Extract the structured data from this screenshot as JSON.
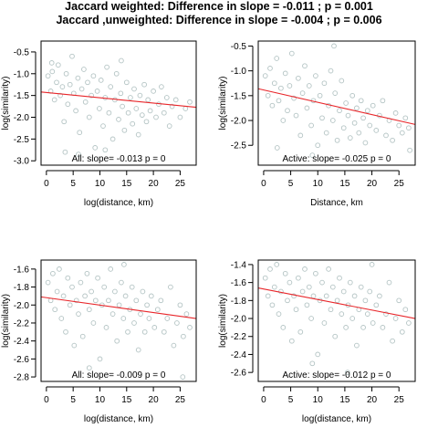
{
  "titles": {
    "line1": "Jaccard weighted: Difference in slope = -0.011 ; p = 0.001",
    "line2": "Jaccard ,unweighted: Difference in slope = -0.004 ; p = 0.006"
  },
  "colors": {
    "points": "#b4c4c4",
    "fit_line": "#e8262a",
    "axes": "#000000"
  },
  "chart_data": [
    {
      "type": "scatter",
      "xlabel": "log(distance, km)",
      "ylabel": "log(similarity)",
      "annotation": "All: slope= -0.013  p =  0",
      "xlim": [
        -1,
        28
      ],
      "ylim": [
        -3.1,
        -0.25
      ],
      "xticks": [
        "0",
        "5",
        "10",
        "15",
        "20",
        "25"
      ],
      "yticks": [
        "-3.0",
        "-2.5",
        "-2.0",
        "-1.5",
        "-1.0",
        "-0.5"
      ],
      "fit_line": {
        "x": [
          -1,
          28
        ],
        "y": [
          -1.42,
          -1.77
        ]
      },
      "points": [
        [
          0.3,
          -1.05
        ],
        [
          0.8,
          -1.4
        ],
        [
          1.1,
          -0.95
        ],
        [
          1.5,
          -1.6
        ],
        [
          1.9,
          -1.2
        ],
        [
          2.2,
          -0.8
        ],
        [
          2.6,
          -1.5
        ],
        [
          3.0,
          -1.3
        ],
        [
          3.3,
          -2.1
        ],
        [
          3.7,
          -1.0
        ],
        [
          4.0,
          -1.7
        ],
        [
          4.4,
          -1.25
        ],
        [
          4.8,
          -0.6
        ],
        [
          5.1,
          -1.45
        ],
        [
          5.5,
          -1.85
        ],
        [
          5.9,
          -1.1
        ],
        [
          6.2,
          -2.35
        ],
        [
          6.6,
          -1.35
        ],
        [
          7.0,
          -0.9
        ],
        [
          7.3,
          -1.65
        ],
        [
          7.7,
          -1.2
        ],
        [
          8.0,
          -2.0
        ],
        [
          8.4,
          -1.5
        ],
        [
          8.8,
          -1.05
        ],
        [
          9.1,
          -2.7
        ],
        [
          9.5,
          -1.4
        ],
        [
          9.9,
          -1.8
        ],
        [
          10.2,
          -1.15
        ],
        [
          10.6,
          -2.2
        ],
        [
          11.0,
          -1.55
        ],
        [
          11.3,
          -0.85
        ],
        [
          11.7,
          -1.9
        ],
        [
          12.0,
          -1.3
        ],
        [
          12.4,
          -2.5
        ],
        [
          12.8,
          -1.6
        ],
        [
          13.1,
          -1.0
        ],
        [
          13.5,
          -2.05
        ],
        [
          13.9,
          -1.45
        ],
        [
          14.2,
          -1.75
        ],
        [
          14.6,
          -2.3
        ],
        [
          15.0,
          -1.2
        ],
        [
          15.3,
          -1.9
        ],
        [
          15.7,
          -1.55
        ],
        [
          16.1,
          -2.15
        ],
        [
          16.4,
          -1.35
        ],
        [
          16.8,
          -1.8
        ],
        [
          17.2,
          -2.4
        ],
        [
          17.5,
          -1.5
        ],
        [
          17.9,
          -1.95
        ],
        [
          18.3,
          -1.25
        ],
        [
          18.7,
          -2.1
        ],
        [
          19.0,
          -1.6
        ],
        [
          19.4,
          -1.85
        ],
        [
          20.0,
          -1.4
        ],
        [
          20.5,
          -2.0
        ],
        [
          21.0,
          -1.7
        ],
        [
          21.5,
          -1.3
        ],
        [
          22.0,
          -1.9
        ],
        [
          22.5,
          -1.55
        ],
        [
          23.0,
          -2.2
        ],
        [
          23.5,
          -1.75
        ],
        [
          24.2,
          -1.6
        ],
        [
          25.0,
          -2.0
        ],
        [
          26.0,
          -1.8
        ],
        [
          26.8,
          -1.65
        ],
        [
          3.5,
          -2.8
        ],
        [
          6.0,
          -2.85
        ],
        [
          11.0,
          -2.75
        ],
        [
          1.0,
          -0.75
        ],
        [
          14.0,
          -0.7
        ]
      ]
    },
    {
      "type": "scatter",
      "xlabel": "Distance, km",
      "ylabel": "log(similarity)",
      "annotation": "Active: slope= -0.025  p =  0",
      "xlim": [
        -1,
        28
      ],
      "ylim": [
        -2.9,
        -0.4
      ],
      "xticks": [
        "0",
        "5",
        "10",
        "15",
        "20",
        "25"
      ],
      "yticks": [
        "-2.5",
        "-2.0",
        "-1.5",
        "-1.0",
        "-0.5"
      ],
      "fit_line": {
        "x": [
          -1,
          28
        ],
        "y": [
          -1.36,
          -2.08
        ]
      },
      "points": [
        [
          0.3,
          -1.1
        ],
        [
          0.8,
          -1.5
        ],
        [
          1.2,
          -0.95
        ],
        [
          1.6,
          -1.7
        ],
        [
          2.0,
          -1.25
        ],
        [
          2.4,
          -0.75
        ],
        [
          2.8,
          -1.6
        ],
        [
          3.2,
          -1.35
        ],
        [
          3.6,
          -2.0
        ],
        [
          4.0,
          -1.05
        ],
        [
          4.4,
          -1.8
        ],
        [
          4.8,
          -1.3
        ],
        [
          5.2,
          -0.65
        ],
        [
          5.6,
          -1.55
        ],
        [
          6.0,
          -1.9
        ],
        [
          6.4,
          -1.15
        ],
        [
          6.8,
          -2.3
        ],
        [
          7.2,
          -1.45
        ],
        [
          7.6,
          -0.9
        ],
        [
          8.0,
          -1.75
        ],
        [
          8.4,
          -1.3
        ],
        [
          8.8,
          -2.1
        ],
        [
          9.2,
          -1.6
        ],
        [
          9.6,
          -1.1
        ],
        [
          10.0,
          -2.5
        ],
        [
          10.4,
          -1.5
        ],
        [
          10.8,
          -1.95
        ],
        [
          11.2,
          -1.25
        ],
        [
          11.6,
          -2.25
        ],
        [
          12.0,
          -1.7
        ],
        [
          12.4,
          -1.0
        ],
        [
          12.8,
          -2.0
        ],
        [
          13.2,
          -1.45
        ],
        [
          13.6,
          -2.4
        ],
        [
          14.0,
          -1.8
        ],
        [
          14.4,
          -1.2
        ],
        [
          14.8,
          -2.15
        ],
        [
          15.2,
          -1.65
        ],
        [
          15.6,
          -1.9
        ],
        [
          16.0,
          -2.35
        ],
        [
          16.4,
          -1.5
        ],
        [
          16.8,
          -2.05
        ],
        [
          17.2,
          -1.75
        ],
        [
          17.6,
          -2.25
        ],
        [
          18.0,
          -1.6
        ],
        [
          18.4,
          -1.95
        ],
        [
          18.8,
          -2.45
        ],
        [
          19.2,
          -1.8
        ],
        [
          19.6,
          -2.1
        ],
        [
          20.2,
          -1.7
        ],
        [
          20.8,
          -2.2
        ],
        [
          21.4,
          -1.9
        ],
        [
          22.0,
          -1.6
        ],
        [
          22.6,
          -2.3
        ],
        [
          23.2,
          -2.0
        ],
        [
          23.8,
          -2.4
        ],
        [
          24.4,
          -1.85
        ],
        [
          25.0,
          -2.1
        ],
        [
          25.6,
          -2.25
        ],
        [
          26.2,
          -1.95
        ],
        [
          26.8,
          -2.15
        ],
        [
          27.0,
          -2.6
        ],
        [
          13.0,
          -0.5
        ],
        [
          2.5,
          -2.55
        ],
        [
          9.0,
          -2.7
        ]
      ]
    },
    {
      "type": "scatter",
      "xlabel": "log(distance, km)",
      "ylabel": "log(similarity)",
      "annotation": "All: slope= -0.009  p =  0",
      "xlim": [
        -1,
        28
      ],
      "ylim": [
        -2.85,
        -1.5
      ],
      "xticks": [
        "0",
        "5",
        "10",
        "15",
        "20",
        "25"
      ],
      "yticks": [
        "-2.8",
        "-2.6",
        "-2.4",
        "-2.2",
        "-2.0",
        "-1.8",
        "-1.6"
      ],
      "fit_line": {
        "x": [
          -1,
          28
        ],
        "y": [
          -1.91,
          -2.15
        ]
      },
      "points": [
        [
          0.3,
          -1.75
        ],
        [
          0.8,
          -1.95
        ],
        [
          1.2,
          -1.65
        ],
        [
          1.6,
          -2.05
        ],
        [
          2.0,
          -1.85
        ],
        [
          2.4,
          -1.6
        ],
        [
          2.8,
          -2.15
        ],
        [
          3.2,
          -1.9
        ],
        [
          3.6,
          -2.3
        ],
        [
          4.0,
          -1.7
        ],
        [
          4.4,
          -2.0
        ],
        [
          4.8,
          -1.8
        ],
        [
          5.2,
          -2.45
        ],
        [
          5.6,
          -1.95
        ],
        [
          6.0,
          -2.1
        ],
        [
          6.4,
          -1.75
        ],
        [
          6.8,
          -2.35
        ],
        [
          7.2,
          -1.9
        ],
        [
          7.6,
          -1.65
        ],
        [
          8.0,
          -2.05
        ],
        [
          8.4,
          -1.85
        ],
        [
          8.8,
          -2.2
        ],
        [
          9.2,
          -1.95
        ],
        [
          9.6,
          -1.7
        ],
        [
          10.0,
          -2.6
        ],
        [
          10.4,
          -2.0
        ],
        [
          10.8,
          -1.8
        ],
        [
          11.2,
          -2.25
        ],
        [
          11.6,
          -1.95
        ],
        [
          12.0,
          -1.6
        ],
        [
          12.4,
          -2.1
        ],
        [
          12.8,
          -1.85
        ],
        [
          13.2,
          -2.4
        ],
        [
          13.6,
          -2.0
        ],
        [
          14.0,
          -1.75
        ],
        [
          14.4,
          -2.15
        ],
        [
          14.8,
          -1.9
        ],
        [
          15.2,
          -2.3
        ],
        [
          15.6,
          -2.05
        ],
        [
          16.0,
          -1.8
        ],
        [
          16.4,
          -2.2
        ],
        [
          16.8,
          -1.95
        ],
        [
          17.2,
          -2.5
        ],
        [
          17.6,
          -2.1
        ],
        [
          18.0,
          -1.85
        ],
        [
          18.4,
          -2.3
        ],
        [
          18.8,
          -2.0
        ],
        [
          19.2,
          -2.15
        ],
        [
          19.6,
          -1.9
        ],
        [
          20.2,
          -2.25
        ],
        [
          20.8,
          -2.05
        ],
        [
          21.4,
          -1.95
        ],
        [
          22.0,
          -2.3
        ],
        [
          22.6,
          -2.15
        ],
        [
          23.2,
          -1.8
        ],
        [
          23.8,
          -2.45
        ],
        [
          24.4,
          -2.2
        ],
        [
          25.0,
          -2.0
        ],
        [
          25.6,
          -2.35
        ],
        [
          26.2,
          -2.1
        ],
        [
          26.8,
          -2.25
        ],
        [
          25.5,
          -2.8
        ],
        [
          14.5,
          -1.55
        ],
        [
          8.0,
          -2.7
        ]
      ]
    },
    {
      "type": "scatter",
      "xlabel": "log(distance, km)",
      "ylabel": "log(similarity)",
      "annotation": "Active: slope= -0.012  p =  0",
      "xlim": [
        -1,
        28
      ],
      "ylim": [
        -2.7,
        -1.35
      ],
      "xticks": [
        "0",
        "5",
        "10",
        "15",
        "20",
        "25"
      ],
      "yticks": [
        "-2.6",
        "-2.4",
        "-2.2",
        "-2.0",
        "-1.8",
        "-1.6",
        "-1.4"
      ],
      "fit_line": {
        "x": [
          -1,
          28
        ],
        "y": [
          -1.66,
          -2.0
        ]
      },
      "points": [
        [
          0.3,
          -1.55
        ],
        [
          0.8,
          -1.75
        ],
        [
          1.2,
          -1.45
        ],
        [
          1.6,
          -1.85
        ],
        [
          2.0,
          -1.65
        ],
        [
          2.4,
          -1.4
        ],
        [
          2.8,
          -1.95
        ],
        [
          3.2,
          -1.7
        ],
        [
          3.6,
          -2.1
        ],
        [
          4.0,
          -1.5
        ],
        [
          4.4,
          -1.8
        ],
        [
          4.8,
          -1.6
        ],
        [
          5.2,
          -2.25
        ],
        [
          5.6,
          -1.75
        ],
        [
          6.0,
          -1.9
        ],
        [
          6.4,
          -1.55
        ],
        [
          6.8,
          -2.15
        ],
        [
          7.2,
          -1.7
        ],
        [
          7.6,
          -1.45
        ],
        [
          8.0,
          -1.85
        ],
        [
          8.4,
          -1.65
        ],
        [
          8.8,
          -2.0
        ],
        [
          9.2,
          -1.75
        ],
        [
          9.6,
          -1.5
        ],
        [
          10.0,
          -2.4
        ],
        [
          10.4,
          -1.8
        ],
        [
          10.8,
          -1.6
        ],
        [
          11.2,
          -2.05
        ],
        [
          11.6,
          -1.75
        ],
        [
          12.0,
          -1.45
        ],
        [
          12.4,
          -1.9
        ],
        [
          12.8,
          -1.65
        ],
        [
          13.2,
          -2.2
        ],
        [
          13.6,
          -1.8
        ],
        [
          14.0,
          -1.55
        ],
        [
          14.4,
          -1.95
        ],
        [
          14.8,
          -1.7
        ],
        [
          15.2,
          -2.1
        ],
        [
          15.6,
          -1.85
        ],
        [
          16.0,
          -1.6
        ],
        [
          16.4,
          -2.0
        ],
        [
          16.8,
          -1.75
        ],
        [
          17.2,
          -2.3
        ],
        [
          17.6,
          -1.9
        ],
        [
          18.0,
          -1.65
        ],
        [
          18.4,
          -2.1
        ],
        [
          18.8,
          -1.8
        ],
        [
          19.2,
          -1.95
        ],
        [
          19.6,
          -1.7
        ],
        [
          20.2,
          -2.05
        ],
        [
          20.8,
          -1.85
        ],
        [
          21.4,
          -1.75
        ],
        [
          22.0,
          -2.1
        ],
        [
          22.6,
          -1.95
        ],
        [
          23.2,
          -1.6
        ],
        [
          23.8,
          -2.25
        ],
        [
          24.4,
          -2.0
        ],
        [
          25.0,
          -1.8
        ],
        [
          25.6,
          -2.15
        ],
        [
          26.2,
          -1.9
        ],
        [
          26.8,
          -2.05
        ],
        [
          15.5,
          -2.6
        ],
        [
          9.0,
          -2.5
        ],
        [
          20.0,
          -1.4
        ]
      ]
    }
  ]
}
